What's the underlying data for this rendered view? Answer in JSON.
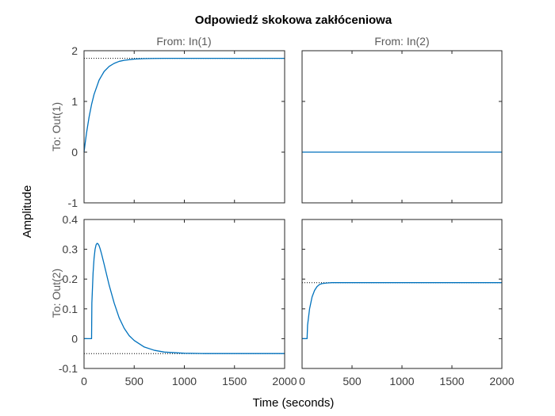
{
  "chart_data": {
    "type": "line",
    "title": "Odpowiedź skokowa zakłóceniowa",
    "xlabel": "Time (seconds)",
    "ylabel": "Amplitude",
    "column_labels": [
      "From: In(1)",
      "From: In(2)"
    ],
    "row_labels": [
      "To: Out(1)",
      "To: Out(2)"
    ],
    "xlim": [
      0,
      2000
    ],
    "xticks": [
      0,
      500,
      1000,
      1500,
      2000
    ],
    "rows": [
      {
        "ylim": [
          -1,
          2
        ],
        "yticks": [
          -1,
          0,
          1,
          2
        ]
      },
      {
        "ylim": [
          -0.1,
          0.4
        ],
        "yticks": [
          -0.1,
          0,
          0.1,
          0.2,
          0.3,
          0.4
        ]
      }
    ],
    "line_color": "#0072bd",
    "subplots": [
      {
        "row": 0,
        "col": 0,
        "final_value": 1.85,
        "series": {
          "x": [
            0,
            10,
            25,
            50,
            75,
            100,
            150,
            200,
            250,
            300,
            350,
            400,
            500,
            600,
            700,
            800,
            1000,
            1200,
            1500,
            2000
          ],
          "y": [
            0,
            0.16,
            0.38,
            0.69,
            0.94,
            1.14,
            1.42,
            1.59,
            1.69,
            1.75,
            1.79,
            1.81,
            1.835,
            1.844,
            1.848,
            1.849,
            1.85,
            1.85,
            1.85,
            1.85
          ]
        }
      },
      {
        "row": 0,
        "col": 1,
        "final_value": null,
        "series": {
          "x": [
            0,
            2000
          ],
          "y": [
            0,
            0
          ]
        }
      },
      {
        "row": 1,
        "col": 0,
        "final_value": -0.05,
        "series": {
          "x": [
            0,
            75,
            78,
            90,
            100,
            110,
            120,
            130,
            140,
            150,
            160,
            175,
            200,
            250,
            300,
            350,
            400,
            450,
            500,
            600,
            700,
            800,
            900,
            1000,
            1200,
            1500,
            2000
          ],
          "y": [
            0,
            0,
            0.12,
            0.22,
            0.27,
            0.3,
            0.315,
            0.32,
            0.318,
            0.312,
            0.302,
            0.284,
            0.25,
            0.18,
            0.12,
            0.07,
            0.035,
            0.01,
            -0.006,
            -0.028,
            -0.039,
            -0.045,
            -0.047,
            -0.049,
            -0.05,
            -0.05,
            -0.05
          ]
        }
      },
      {
        "row": 1,
        "col": 1,
        "final_value": 0.188,
        "series": {
          "x": [
            0,
            50,
            55,
            75,
            100,
            125,
            150,
            175,
            200,
            250,
            300,
            400,
            500,
            1000,
            2000
          ],
          "y": [
            0,
            0,
            0.045,
            0.1,
            0.14,
            0.162,
            0.175,
            0.182,
            0.185,
            0.187,
            0.188,
            0.188,
            0.188,
            0.188,
            0.188
          ]
        }
      }
    ]
  }
}
